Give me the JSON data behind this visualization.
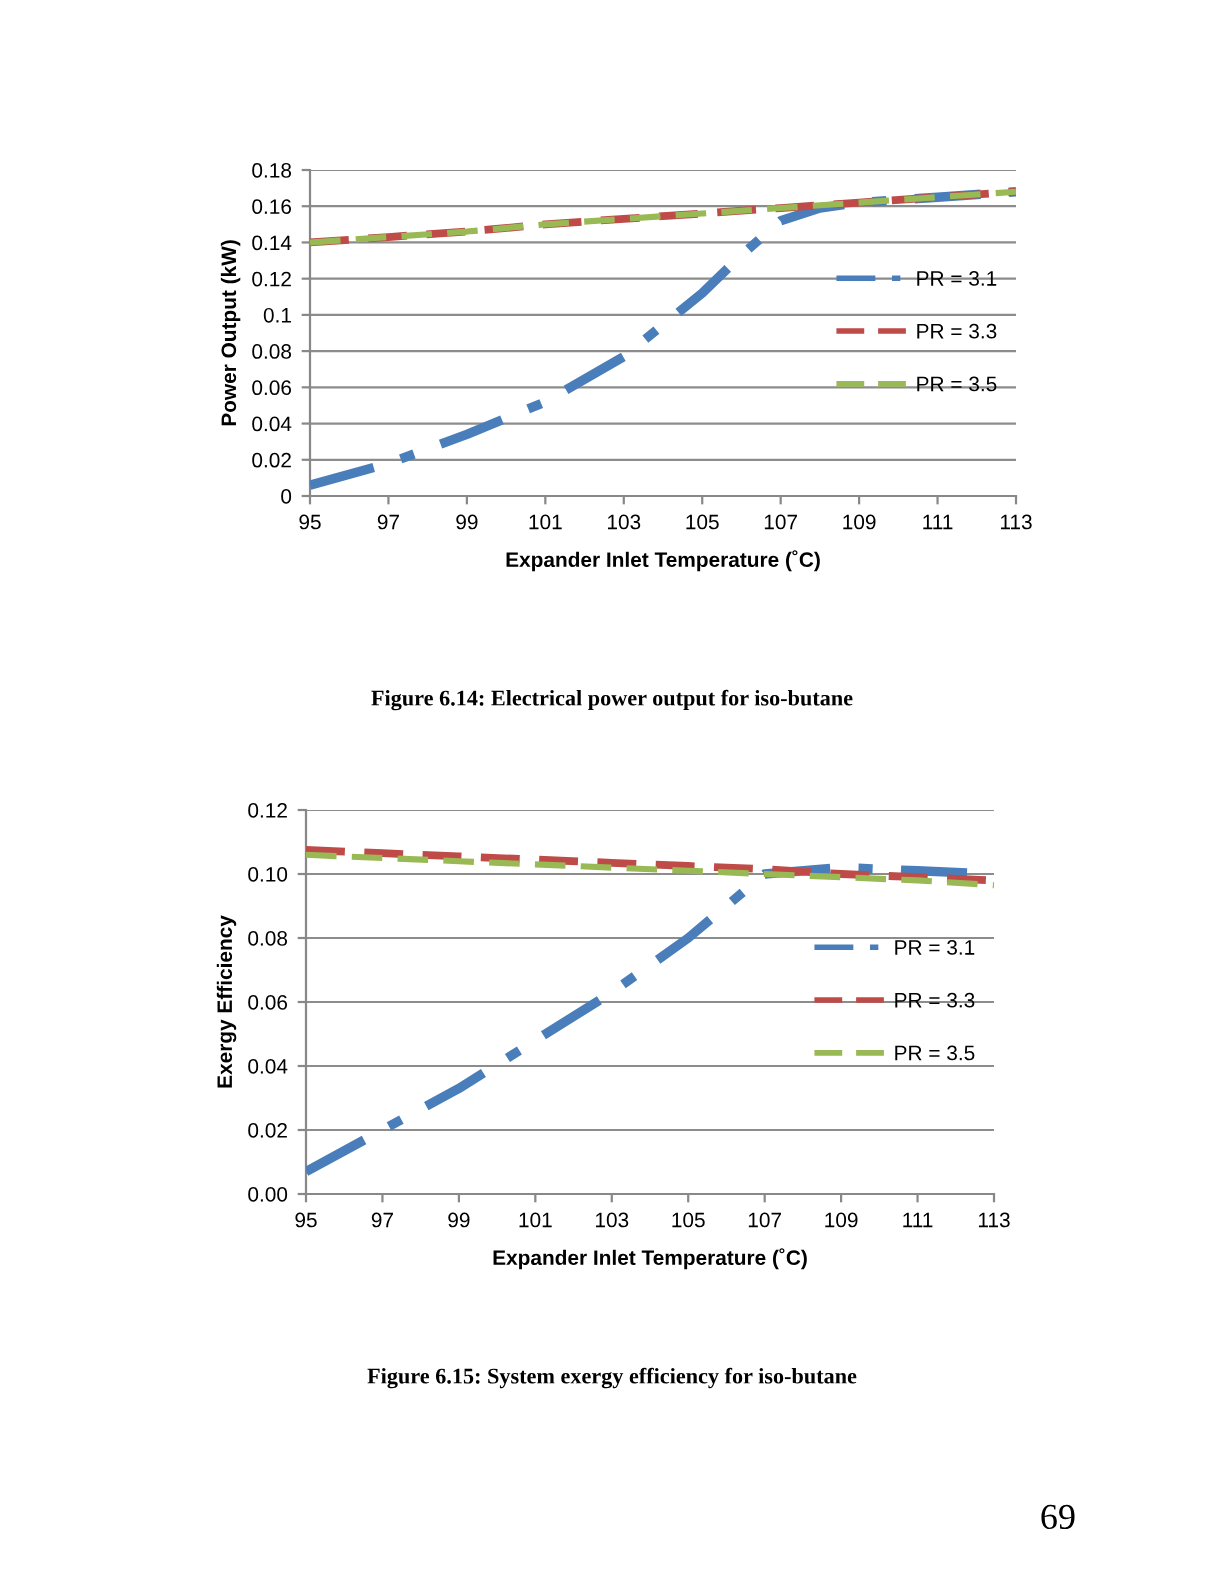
{
  "chart_data": [
    {
      "type": "line",
      "xlabel": "Expander Inlet Temperature (˚C)",
      "ylabel": "Power Output (kW)",
      "xlim": [
        95,
        113
      ],
      "xticks": [
        95,
        97,
        99,
        101,
        103,
        105,
        107,
        109,
        111,
        113
      ],
      "ylim": [
        0,
        0.18
      ],
      "yticks": [
        0,
        0.02,
        0.04,
        0.06,
        0.08,
        0.1,
        0.12,
        0.14,
        0.16,
        0.18
      ],
      "grid": "y",
      "legend": "right",
      "annotations": [
        "Figure 6.14: Electrical power output for iso-butane"
      ],
      "series": [
        {
          "name": "PR = 3.1",
          "color": "#4a7ebb",
          "line_style": "dashdot",
          "x": [
            95,
            97,
            99,
            101,
            103,
            105,
            106,
            107,
            108,
            109,
            111,
            113
          ],
          "values": [
            0.006,
            0.018,
            0.034,
            0.052,
            0.077,
            0.112,
            0.133,
            0.152,
            0.159,
            0.162,
            0.165,
            0.168
          ]
        },
        {
          "name": "PR = 3.3",
          "color": "#be4b48",
          "line_style": "dashed",
          "x": [
            95,
            97,
            99,
            101,
            103,
            105,
            107,
            109,
            111,
            113
          ],
          "values": [
            0.14,
            0.143,
            0.146,
            0.15,
            0.153,
            0.156,
            0.159,
            0.162,
            0.165,
            0.168
          ]
        },
        {
          "name": "PR = 3.5",
          "color": "#98b954",
          "line_style": "dashed",
          "x": [
            95,
            97,
            99,
            101,
            103,
            105,
            107,
            109,
            111,
            113
          ],
          "values": [
            0.14,
            0.143,
            0.146,
            0.15,
            0.153,
            0.156,
            0.159,
            0.162,
            0.165,
            0.168
          ]
        }
      ]
    },
    {
      "type": "line",
      "xlabel": "Expander Inlet Temperature (˚C)",
      "ylabel": "Exergy Efficiency",
      "xlim": [
        95,
        113
      ],
      "xticks": [
        95,
        97,
        99,
        101,
        103,
        105,
        107,
        109,
        111,
        113
      ],
      "ylim": [
        0,
        0.12
      ],
      "yticks": [
        {
          "value": 0,
          "label": "0.00"
        },
        {
          "value": 0.02,
          "label": "0.02"
        },
        {
          "value": 0.04,
          "label": "0.04"
        },
        {
          "value": 0.06,
          "label": "0.06"
        },
        {
          "value": 0.08,
          "label": "0.08"
        },
        {
          "value": 0.1,
          "label": "0.10"
        },
        {
          "value": 0.12,
          "label": "0.12"
        }
      ],
      "grid": "y",
      "legend": "right",
      "annotations": [
        "Figure 6.15: System exergy efficiency for iso-butane",
        "69"
      ],
      "series": [
        {
          "name": "PR = 3.1",
          "color": "#4a7ebb",
          "line_style": "dashdot",
          "x": [
            95,
            97,
            99,
            101,
            103,
            105,
            107,
            109,
            111,
            113
          ],
          "values": [
            0.007,
            0.02,
            0.033,
            0.048,
            0.063,
            0.08,
            0.1,
            0.102,
            0.101,
            0.1
          ]
        },
        {
          "name": "PR = 3.3",
          "color": "#be4b48",
          "line_style": "dashed",
          "x": [
            95,
            97,
            99,
            101,
            103,
            105,
            107,
            109,
            111,
            113
          ],
          "values": [
            0.1075,
            0.1065,
            0.1055,
            0.1045,
            0.1035,
            0.1025,
            0.1015,
            0.1,
            0.099,
            0.098
          ]
        },
        {
          "name": "PR = 3.5",
          "color": "#98b954",
          "line_style": "dashed",
          "x": [
            95,
            97,
            99,
            101,
            103,
            105,
            107,
            109,
            111,
            113
          ],
          "values": [
            0.106,
            0.105,
            0.104,
            0.103,
            0.102,
            0.101,
            0.1,
            0.099,
            0.098,
            0.0965
          ]
        }
      ]
    }
  ]
}
